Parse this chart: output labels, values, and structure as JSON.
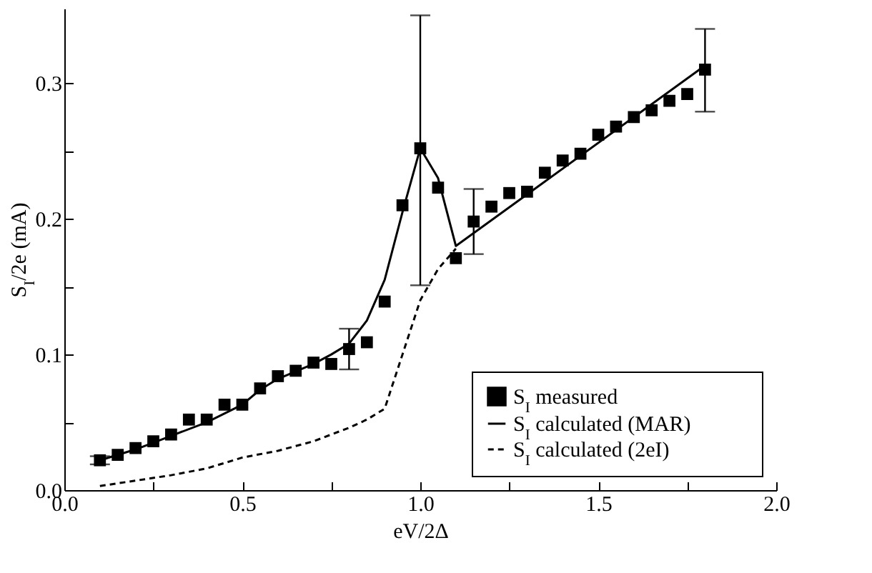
{
  "chart_data": {
    "type": "scatter",
    "xlabel": "eV/2Δ",
    "ylabel": "S$_{I}$/2e (mA)",
    "xlim": [
      0,
      2
    ],
    "ylim": [
      0,
      0.355
    ],
    "xticks": [
      {
        "value": 0,
        "label": "0.0"
      },
      {
        "value": 0.25,
        "label": null
      },
      {
        "value": 0.5,
        "label": "0.5"
      },
      {
        "value": 0.75,
        "label": null
      },
      {
        "value": 1,
        "label": "1.0"
      },
      {
        "value": 1.25,
        "label": null
      },
      {
        "value": 1.5,
        "label": "1.5"
      },
      {
        "value": 1.75,
        "label": null
      },
      {
        "value": 2,
        "label": "2.0"
      }
    ],
    "yticks": [
      {
        "value": 0,
        "label": "0.0"
      },
      {
        "value": 0.05,
        "label": null
      },
      {
        "value": 0.1,
        "label": "0.1"
      },
      {
        "value": 0.15,
        "label": null
      },
      {
        "value": 0.2,
        "label": "0.2"
      },
      {
        "value": 0.25,
        "label": null
      },
      {
        "value": 0.3,
        "label": "0.3"
      }
    ],
    "grid": false,
    "legend": "bottom right",
    "series": [
      {
        "name": "S$_{I}$ measured",
        "type": "scatter",
        "marker": "square",
        "color": "#000000",
        "x": [
          0.1,
          0.15,
          0.2,
          0.25,
          0.3,
          0.35,
          0.4,
          0.45,
          0.5,
          0.55,
          0.6,
          0.65,
          0.7,
          0.75,
          0.8,
          0.85,
          0.9,
          0.95,
          1.0,
          1.05,
          1.1,
          1.15,
          1.2,
          1.25,
          1.3,
          1.35,
          1.4,
          1.45,
          1.5,
          1.55,
          1.6,
          1.65,
          1.7,
          1.75,
          1.8
        ],
        "values": [
          0.022,
          0.026,
          0.031,
          0.036,
          0.041,
          0.052,
          0.052,
          0.063,
          0.063,
          0.075,
          0.084,
          0.088,
          0.094,
          0.093,
          0.104,
          0.109,
          0.139,
          0.21,
          0.252,
          0.223,
          0.171,
          0.198,
          0.209,
          0.219,
          0.22,
          0.234,
          0.243,
          0.248,
          0.262,
          0.268,
          0.275,
          0.28,
          0.287,
          0.292,
          0.31
        ],
        "errors": [
          [
            0.019,
            0.025
          ],
          null,
          null,
          null,
          null,
          null,
          null,
          null,
          null,
          null,
          null,
          null,
          null,
          null,
          [
            0.089,
            0.119
          ],
          null,
          null,
          null,
          [
            0.151,
            0.35
          ],
          null,
          null,
          [
            0.174,
            0.222
          ],
          null,
          null,
          null,
          null,
          null,
          null,
          null,
          null,
          null,
          null,
          null,
          null,
          [
            0.279,
            0.34
          ]
        ]
      },
      {
        "name": "S$_{I}$ calculated (MAR)",
        "type": "line",
        "line_style": "solid",
        "color": "#000000",
        "x": [
          0.1,
          0.2,
          0.3,
          0.4,
          0.5,
          0.55,
          0.6,
          0.7,
          0.75,
          0.8,
          0.85,
          0.9,
          0.95,
          1.0,
          1.05,
          1.1,
          1.8
        ],
        "values": [
          0.022,
          0.03,
          0.04,
          0.05,
          0.063,
          0.074,
          0.082,
          0.093,
          0.1,
          0.108,
          0.125,
          0.155,
          0.205,
          0.252,
          0.23,
          0.18,
          0.313
        ]
      },
      {
        "name": "S$_{I}$ calculated (2eI)",
        "type": "line",
        "line_style": "dashed",
        "color": "#000000",
        "x": [
          0.1,
          0.2,
          0.3,
          0.4,
          0.5,
          0.6,
          0.7,
          0.8,
          0.85,
          0.9,
          0.95,
          1.0,
          1.05,
          1.1
        ],
        "values": [
          0.003,
          0.007,
          0.011,
          0.016,
          0.024,
          0.029,
          0.036,
          0.046,
          0.052,
          0.06,
          0.1,
          0.14,
          0.163,
          0.178
        ]
      }
    ]
  }
}
